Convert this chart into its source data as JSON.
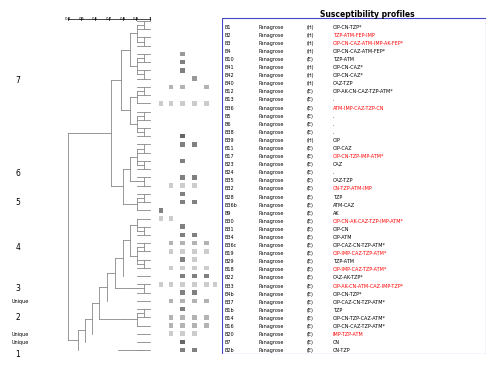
{
  "title": "Susceptibility profiles",
  "bg_color": "#f0f0f0",
  "rows": [
    {
      "id": "B1",
      "sp": "Panagrose (H)",
      "profile": "CIP-CN-TZP*",
      "color": "black"
    },
    {
      "id": "B2",
      "sp": "Panagrose (H)",
      "profile": "TZP-ATM-FEP-IMP",
      "color": "red"
    },
    {
      "id": "B3",
      "sp": "Panagrose (H)",
      "profile": "CIP-CN-CAZ-ATM-IMP-AK-FEP*",
      "color": "red"
    },
    {
      "id": "B4",
      "sp": "Panagrose (H)",
      "profile": "CIP-CN-CAZ-ATM-FEP*",
      "color": "black"
    },
    {
      "id": "B10",
      "sp": "Panagrose (E)",
      "profile": "TZP-ATM",
      "color": "black"
    },
    {
      "id": "B41",
      "sp": "Panagrose (H)",
      "profile": "CIP-CN-CAZ*",
      "color": "black"
    },
    {
      "id": "B42",
      "sp": "Panagrose (H)",
      "profile": "CIP-CN-CAZ*",
      "color": "black"
    },
    {
      "id": "B40",
      "sp": "Panagrose (H)",
      "profile": "CAZ-TZP",
      "color": "black"
    },
    {
      "id": "B12",
      "sp": "Panagrose (E)",
      "profile": "CIP-AK-CN-CAZ-TZP-ATM*",
      "color": "black"
    },
    {
      "id": "B13",
      "sp": "Panagrose (E)",
      "profile": ".",
      "color": "black"
    },
    {
      "id": "B36",
      "sp": "Panagrose (E)",
      "profile": "ATM-IMP-CAZ-TZP-CN",
      "color": "red"
    },
    {
      "id": "B5",
      "sp": "Panagrose (E)",
      "profile": ".",
      "color": "black"
    },
    {
      "id": "B6",
      "sp": "Panagrose (E)",
      "profile": ".",
      "color": "black"
    },
    {
      "id": "B38",
      "sp": "Panagrose (E)",
      "profile": ".",
      "color": "black"
    },
    {
      "id": "B39",
      "sp": "Panagrose (H)",
      "profile": "CIP",
      "color": "black"
    },
    {
      "id": "B11",
      "sp": "Panagrose (E)",
      "profile": "CIP-CAZ",
      "color": "black"
    },
    {
      "id": "B17",
      "sp": "Panagrose (E)",
      "profile": "CIP-CN-TZP-IMP-ATM*",
      "color": "red"
    },
    {
      "id": "B23",
      "sp": "Panagrose (E)",
      "profile": "CAZ",
      "color": "black"
    },
    {
      "id": "B24",
      "sp": "Panagrose (E)",
      "profile": ".",
      "color": "black"
    },
    {
      "id": "B35",
      "sp": "Panagrose (E)",
      "profile": "CAZ-TZP",
      "color": "black"
    },
    {
      "id": "B32",
      "sp": "Panagrose (E)",
      "profile": "CN-TZP-ATM-IMP",
      "color": "red"
    },
    {
      "id": "B28",
      "sp": "Panagrose (E)",
      "profile": "TZP",
      "color": "black"
    },
    {
      "id": "B36b",
      "sp": "Panagrose (E)",
      "profile": "ATM-CAZ",
      "color": "black"
    },
    {
      "id": "B9",
      "sp": "Panagrose (E)",
      "profile": "AK",
      "color": "black"
    },
    {
      "id": "B30",
      "sp": "Panagrose (E)",
      "profile": "CIP-CN-AK-CAZ-TZP-IMP-ATM*",
      "color": "red"
    },
    {
      "id": "B31",
      "sp": "Panagrose (E)",
      "profile": "CIP-CN",
      "color": "black"
    },
    {
      "id": "B34",
      "sp": "Panagrose (E)",
      "profile": "CIP-ATM",
      "color": "black"
    },
    {
      "id": "B36c",
      "sp": "Panagrose (E)",
      "profile": "CIP-CAZ-CN-TZP-ATM*",
      "color": "black"
    },
    {
      "id": "B19",
      "sp": "Panagrose (E)",
      "profile": "CIP-IMP-CAZ-TZP-ATM*",
      "color": "red"
    },
    {
      "id": "B29",
      "sp": "Panagrose (E)",
      "profile": "TZP-ATM",
      "color": "black"
    },
    {
      "id": "B18",
      "sp": "Panagrose (E)",
      "profile": "CIP-IMP-CAZ-TZP-ATM*",
      "color": "red"
    },
    {
      "id": "B22",
      "sp": "Panagrose (E)",
      "profile": "CAZ-AK-TZP*",
      "color": "black"
    },
    {
      "id": "B33",
      "sp": "Panagrose (E)",
      "profile": "CIP-AK-CN-ATM-CAZ-IMP-TZP*",
      "color": "red"
    },
    {
      "id": "B4b",
      "sp": "Panagrose (E)",
      "profile": "CIP-CN-TZP*",
      "color": "black"
    },
    {
      "id": "B37",
      "sp": "Panagrose (E)",
      "profile": "CIP-CAZ-CN-TZP-ATM*",
      "color": "black"
    },
    {
      "id": "B1b",
      "sp": "Panagrose (E)",
      "profile": "TZP",
      "color": "black"
    },
    {
      "id": "B14",
      "sp": "Panagrose (E)",
      "profile": "CIP-CN-TZP-CAZ-ATM*",
      "color": "black"
    },
    {
      "id": "B16",
      "sp": "Panagrose (E)",
      "profile": "CIP-CN-CAZ-TZP-ATM*",
      "color": "black"
    },
    {
      "id": "B20",
      "sp": "Panagrose (E)",
      "profile": "IMP-TZP-ATM",
      "color": "red"
    },
    {
      "id": "B7",
      "sp": "Panagrose (E)",
      "profile": "CN",
      "color": "black"
    },
    {
      "id": "B2b",
      "sp": "Panagrose (E)",
      "profile": "CN-TZP",
      "color": "black"
    }
  ]
}
